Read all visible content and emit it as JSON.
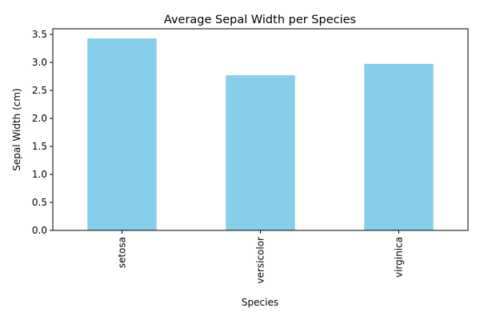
{
  "chart_data": {
    "type": "bar",
    "title": "Average Sepal Width per Species",
    "xlabel": "Species",
    "ylabel": "Sepal Width (cm)",
    "categories": [
      "setosa",
      "versicolor",
      "virginica"
    ],
    "values": [
      3.428,
      2.77,
      2.974
    ],
    "ylim": [
      0,
      3.6
    ],
    "yticks": [
      0.0,
      0.5,
      1.0,
      1.5,
      2.0,
      2.5,
      3.0,
      3.5
    ],
    "ytick_labels": [
      "0.0",
      "0.5",
      "1.0",
      "1.5",
      "2.0",
      "2.5",
      "3.0",
      "3.5"
    ],
    "bar_color": "#87ceeb",
    "grid": false,
    "legend": "none"
  }
}
